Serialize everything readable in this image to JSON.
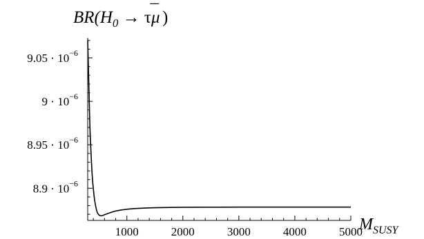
{
  "chart_data": {
    "type": "line",
    "title": "BR(H0 → τμ̄)",
    "title_parts": {
      "base": "BR(H",
      "sub": "0",
      "arrow": " → τ",
      "mu": "μ",
      "mubar": "¯",
      "close": ")"
    },
    "xlabel": "M_SUSY",
    "xlabel_parts": {
      "base": "M",
      "sub": "SUSY"
    },
    "ylabel": "",
    "xlim": [
      300,
      5000
    ],
    "ylim": [
      8.863e-06,
      9.073e-06
    ],
    "grid": false,
    "x_ticks": [
      1000,
      2000,
      3000,
      4000,
      5000
    ],
    "y_ticks": [
      {
        "value": 8.9e-06,
        "mantissa": "8.9",
        "power": "· 10",
        "exp": "−6"
      },
      {
        "value": 8.95e-06,
        "mantissa": "8.95",
        "power": "· 10",
        "exp": "−6"
      },
      {
        "value": 9e-06,
        "mantissa": "9",
        "power": "· 10",
        "exp": "−6"
      },
      {
        "value": 9.05e-06,
        "mantissa": "9.05",
        "power": "· 10",
        "exp": "−6"
      }
    ],
    "series": [
      {
        "x": [
          300,
          320,
          340,
          360,
          380,
          400,
          420,
          450,
          480,
          520,
          560,
          600,
          700,
          800,
          1000,
          1200,
          1500,
          2000,
          2500,
          3000,
          4000,
          5000
        ],
        "y": [
          9.07e-06,
          9.02e-06,
          8.97e-06,
          8.94e-06,
          8.915e-06,
          8.9e-06,
          8.888e-06,
          8.877e-06,
          8.871e-06,
          8.8685e-06,
          8.8685e-06,
          8.8695e-06,
          8.8718e-06,
          8.8738e-06,
          8.8758e-06,
          8.8768e-06,
          8.8776e-06,
          8.8781e-06,
          8.8782e-06,
          8.8783e-06,
          8.8783e-06,
          8.8783e-06
        ]
      }
    ]
  }
}
